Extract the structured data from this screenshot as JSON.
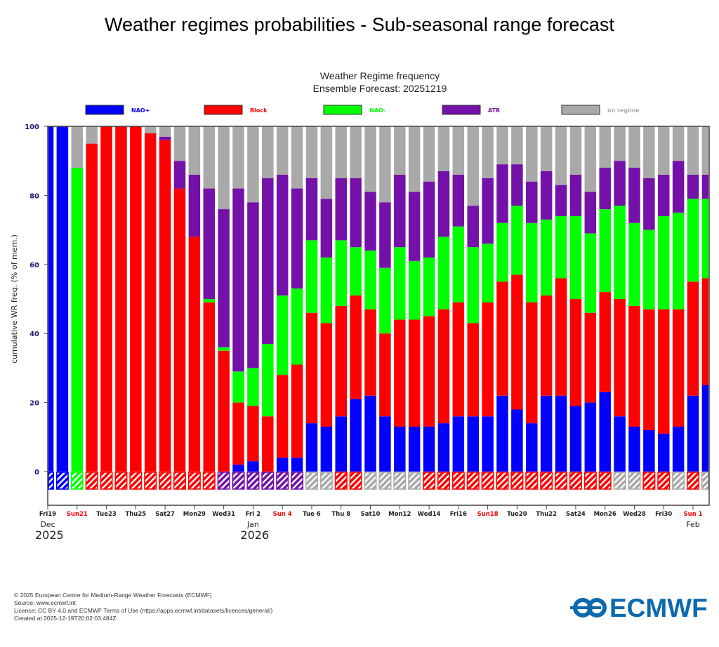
{
  "page_title": "Weather regimes probabilities - Sub-seasonal range forecast",
  "footer": {
    "lines": [
      "© 2025 European Centre for Medium-Range Weather Forecasts (ECMWF)",
      "Source: www.ecmwf.int",
      "Licence: CC BY 4.0 and ECMWF Terms of Use (https://apps.ecmwf.int/datasets/licences/general/)",
      "Created at 2025-12-19T20:02:03.484Z"
    ],
    "logo_text": "ECMWF"
  },
  "chart_data": {
    "type": "bar",
    "stacked": true,
    "title": "Weather Regime frequency",
    "subtitle": "Ensemble Forecast: 20251219",
    "ylabel": "cumulative WR freq. (% of mem.)",
    "xlabel": "",
    "ylim": [
      -10,
      100
    ],
    "yticks": [
      0,
      20,
      40,
      60,
      80,
      100
    ],
    "legend_position": "top",
    "legend": [
      {
        "name": "NAO+",
        "color": "#0000ff"
      },
      {
        "name": "Block",
        "color": "#ff0000"
      },
      {
        "name": "NAO-",
        "color": "#00ff00"
      },
      {
        "name": "ATR",
        "color": "#7311a8"
      },
      {
        "name": "no regime",
        "color": "#a9a9a9"
      }
    ],
    "xticks": [
      {
        "label": "Fri19",
        "weekend": false,
        "month": "Dec",
        "year": "2025"
      },
      {
        "label": "Sun21",
        "weekend": true
      },
      {
        "label": "Tue23",
        "weekend": false
      },
      {
        "label": "Thu25",
        "weekend": false
      },
      {
        "label": "Sat27",
        "weekend": false
      },
      {
        "label": "Mon29",
        "weekend": false
      },
      {
        "label": "Wed31",
        "weekend": false
      },
      {
        "label": "Fri 2",
        "weekend": false,
        "month": "Jan",
        "year": "2026"
      },
      {
        "label": "Sun 4",
        "weekend": true
      },
      {
        "label": "Tue 6",
        "weekend": false
      },
      {
        "label": "Thu 8",
        "weekend": false
      },
      {
        "label": "Sat10",
        "weekend": false
      },
      {
        "label": "Mon12",
        "weekend": false
      },
      {
        "label": "Wed14",
        "weekend": false
      },
      {
        "label": "Fri16",
        "weekend": false
      },
      {
        "label": "Sun18",
        "weekend": true
      },
      {
        "label": "Tue20",
        "weekend": false
      },
      {
        "label": "Thu22",
        "weekend": false
      },
      {
        "label": "Sat24",
        "weekend": false
      },
      {
        "label": "Mon26",
        "weekend": false
      },
      {
        "label": "Wed28",
        "weekend": false
      },
      {
        "label": "Fri30",
        "weekend": false
      },
      {
        "label": "Sun 1",
        "weekend": true,
        "month": "Feb"
      }
    ],
    "series": [
      {
        "name": "NAO+",
        "values": [
          100,
          100,
          0,
          0,
          0,
          0,
          0,
          0,
          0,
          0,
          0,
          0,
          0,
          2,
          3,
          0,
          4,
          4,
          14,
          13,
          16,
          21,
          22,
          16,
          13,
          13,
          13,
          14,
          16,
          16,
          16,
          22,
          18,
          14,
          22,
          22,
          19,
          20,
          23,
          16,
          13,
          12,
          11,
          13,
          22,
          25
        ]
      },
      {
        "name": "Block",
        "values": [
          0,
          0,
          0,
          95,
          100,
          100,
          100,
          98,
          96,
          82,
          68,
          49,
          35,
          18,
          16,
          16,
          24,
          27,
          32,
          30,
          32,
          30,
          25,
          24,
          31,
          31,
          32,
          33,
          33,
          27,
          33,
          33,
          39,
          35,
          29,
          34,
          31,
          26,
          29,
          34,
          35,
          35,
          36,
          34,
          33,
          31
        ]
      },
      {
        "name": "NAO-",
        "values": [
          0,
          0,
          88,
          0,
          0,
          0,
          0,
          0,
          0,
          0,
          0,
          1,
          1,
          9,
          11,
          21,
          23,
          22,
          21,
          19,
          19,
          14,
          17,
          19,
          21,
          17,
          17,
          21,
          22,
          22,
          17,
          17,
          20,
          23,
          22,
          18,
          24,
          23,
          24,
          27,
          24,
          23,
          27,
          28,
          24,
          23
        ]
      },
      {
        "name": "ATR",
        "values": [
          0,
          0,
          0,
          0,
          0,
          0,
          0,
          0,
          1,
          8,
          18,
          32,
          40,
          53,
          48,
          48,
          35,
          29,
          18,
          17,
          18,
          20,
          17,
          19,
          21,
          20,
          22,
          19,
          15,
          12,
          19,
          17,
          12,
          12,
          14,
          9,
          12,
          12,
          12,
          13,
          16,
          15,
          12,
          15,
          7,
          7
        ]
      },
      {
        "name": "no regime",
        "values": [
          0,
          0,
          12,
          5,
          0,
          0,
          0,
          2,
          3,
          10,
          14,
          18,
          24,
          18,
          22,
          15,
          14,
          18,
          15,
          21,
          15,
          15,
          19,
          22,
          14,
          19,
          16,
          13,
          14,
          23,
          15,
          11,
          11,
          16,
          13,
          17,
          14,
          19,
          12,
          10,
          12,
          15,
          14,
          10,
          14,
          14
        ]
      }
    ],
    "dominant_regime": [
      "NAO+",
      "NAO+",
      "NAO-",
      "Block",
      "Block",
      "Block",
      "Block",
      "Block",
      "Block",
      "Block",
      "Block",
      "Block",
      "ATR",
      "ATR",
      "ATR",
      "ATR",
      "ATR",
      "ATR",
      "no regime",
      "no regime",
      "Block",
      "Block",
      "no regime",
      "no regime",
      "no regime",
      "no regime",
      "Block",
      "Block",
      "Block",
      "Block",
      "Block",
      "Block",
      "Block",
      "Block",
      "Block",
      "Block",
      "Block",
      "Block",
      "Block",
      "no regime",
      "no regime",
      "Block",
      "Block",
      "no regime",
      "Block",
      "no regime"
    ]
  }
}
